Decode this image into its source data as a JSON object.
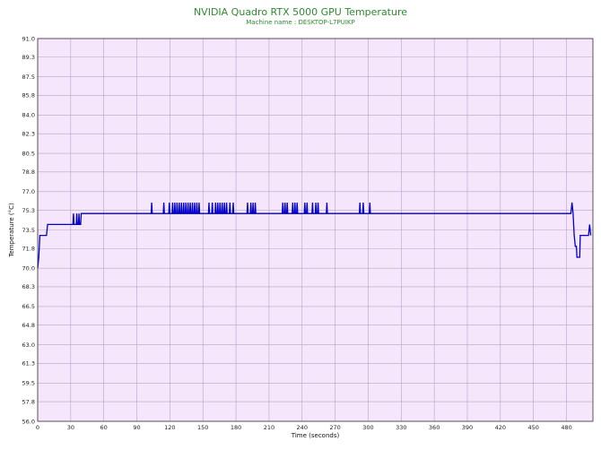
{
  "chart_data": {
    "type": "line",
    "title": "NVIDIA Quadro RTX 5000 GPU Temperature",
    "subtitle": "Machine name : DESKTOP-L7PUIKP",
    "xlabel": "Time (seconds)",
    "ylabel": "Temperature (°C)",
    "xlim": [
      0,
      504
    ],
    "ylim": [
      56.0,
      91.0
    ],
    "xticks": [
      0,
      30,
      60,
      90,
      120,
      150,
      180,
      210,
      240,
      270,
      300,
      330,
      360,
      390,
      420,
      450,
      480
    ],
    "yticks": [
      "91.0",
      "89.3",
      "87.5",
      "85.8",
      "84.0",
      "82.3",
      "80.5",
      "78.8",
      "77.0",
      "75.3",
      "73.5",
      "71.8",
      "70.0",
      "68.3",
      "66.5",
      "64.8",
      "63.0",
      "61.3",
      "59.5",
      "57.8",
      "56.0"
    ],
    "grid": true,
    "colors": {
      "plot_bg": "#f5e6fb",
      "grid": "#b8a3c8",
      "line": "#0000cc",
      "title": "#2e8b2e"
    },
    "series": [
      {
        "values": [
          [
            0,
            70
          ],
          [
            1,
            71
          ],
          [
            2,
            73
          ],
          [
            8,
            73
          ],
          [
            9,
            74
          ],
          [
            32,
            74
          ],
          [
            32.5,
            75
          ],
          [
            33,
            74
          ],
          [
            35,
            74
          ],
          [
            35.5,
            75
          ],
          [
            36,
            74
          ],
          [
            37,
            74
          ],
          [
            37.5,
            75
          ],
          [
            38,
            74
          ],
          [
            39,
            74
          ],
          [
            39.5,
            75
          ],
          [
            40,
            75
          ],
          [
            103,
            75
          ],
          [
            103.5,
            76
          ],
          [
            104,
            75
          ],
          [
            114,
            75
          ],
          [
            114.5,
            76
          ],
          [
            115,
            75
          ],
          [
            119,
            75
          ],
          [
            119.5,
            76
          ],
          [
            120,
            75
          ],
          [
            122,
            75
          ],
          [
            122.5,
            76
          ],
          [
            123,
            75
          ],
          [
            124,
            75
          ],
          [
            124.5,
            76
          ],
          [
            125,
            75
          ],
          [
            126,
            75
          ],
          [
            126.5,
            76
          ],
          [
            127,
            75
          ],
          [
            128,
            75
          ],
          [
            128.5,
            76
          ],
          [
            129,
            75
          ],
          [
            130,
            75
          ],
          [
            130.5,
            76
          ],
          [
            131,
            75
          ],
          [
            132,
            75
          ],
          [
            132.5,
            76
          ],
          [
            133,
            75
          ],
          [
            134,
            75
          ],
          [
            134.5,
            76
          ],
          [
            135,
            75
          ],
          [
            136,
            75
          ],
          [
            136.5,
            76
          ],
          [
            137,
            75
          ],
          [
            138,
            75
          ],
          [
            138.5,
            76
          ],
          [
            139,
            75
          ],
          [
            140,
            75
          ],
          [
            140.5,
            76
          ],
          [
            141,
            75
          ],
          [
            142,
            75
          ],
          [
            142.5,
            76
          ],
          [
            143,
            75
          ],
          [
            144,
            75
          ],
          [
            144.5,
            76
          ],
          [
            145,
            75
          ],
          [
            146,
            75
          ],
          [
            146.5,
            76
          ],
          [
            147,
            75
          ],
          [
            155,
            75
          ],
          [
            155.5,
            76
          ],
          [
            156,
            75
          ],
          [
            158,
            75
          ],
          [
            158.5,
            76
          ],
          [
            159,
            75
          ],
          [
            161,
            75
          ],
          [
            161.5,
            76
          ],
          [
            162,
            75
          ],
          [
            163,
            75
          ],
          [
            163.5,
            76
          ],
          [
            164,
            75
          ],
          [
            165,
            75
          ],
          [
            165.5,
            76
          ],
          [
            166,
            75
          ],
          [
            167,
            75
          ],
          [
            167.5,
            76
          ],
          [
            168,
            75
          ],
          [
            169,
            75
          ],
          [
            169.5,
            76
          ],
          [
            170,
            75
          ],
          [
            171,
            75
          ],
          [
            171.5,
            76
          ],
          [
            172,
            75
          ],
          [
            174,
            75
          ],
          [
            174.5,
            76
          ],
          [
            175,
            75
          ],
          [
            177,
            75
          ],
          [
            177.5,
            76
          ],
          [
            178,
            75
          ],
          [
            190,
            75
          ],
          [
            190.5,
            76
          ],
          [
            191,
            75
          ],
          [
            193,
            75
          ],
          [
            193.5,
            76
          ],
          [
            194,
            75
          ],
          [
            195,
            75
          ],
          [
            195.5,
            76
          ],
          [
            196,
            75
          ],
          [
            197,
            75
          ],
          [
            197.5,
            76
          ],
          [
            198,
            75
          ],
          [
            222,
            75
          ],
          [
            222.5,
            76
          ],
          [
            223,
            75
          ],
          [
            224,
            75
          ],
          [
            224.5,
            76
          ],
          [
            225,
            75
          ],
          [
            226,
            75
          ],
          [
            226.5,
            76
          ],
          [
            227,
            75
          ],
          [
            231,
            75
          ],
          [
            231.5,
            76
          ],
          [
            232,
            75
          ],
          [
            233,
            75
          ],
          [
            233.5,
            76
          ],
          [
            234,
            75
          ],
          [
            235,
            75
          ],
          [
            235.5,
            76
          ],
          [
            236,
            75
          ],
          [
            242,
            75
          ],
          [
            242.5,
            76
          ],
          [
            243,
            75
          ],
          [
            244,
            75
          ],
          [
            244.5,
            76
          ],
          [
            245,
            75
          ],
          [
            249,
            75
          ],
          [
            249.5,
            76
          ],
          [
            250,
            75
          ],
          [
            252,
            75
          ],
          [
            252.5,
            76
          ],
          [
            253,
            75
          ],
          [
            254,
            75
          ],
          [
            254.5,
            76
          ],
          [
            255,
            75
          ],
          [
            262,
            75
          ],
          [
            262.5,
            76
          ],
          [
            263,
            75
          ],
          [
            292,
            75
          ],
          [
            292.5,
            76
          ],
          [
            293,
            75
          ],
          [
            295,
            75
          ],
          [
            295.5,
            76
          ],
          [
            296,
            75
          ],
          [
            301,
            75
          ],
          [
            301.5,
            76
          ],
          [
            302,
            75
          ],
          [
            484,
            75
          ],
          [
            485,
            76
          ],
          [
            486,
            75
          ],
          [
            487,
            73
          ],
          [
            488,
            72
          ],
          [
            489,
            72
          ],
          [
            489.5,
            71
          ],
          [
            492,
            71
          ],
          [
            492.5,
            73
          ],
          [
            496,
            73
          ],
          [
            500,
            73
          ],
          [
            501,
            74
          ],
          [
            502,
            73
          ]
        ]
      }
    ]
  }
}
